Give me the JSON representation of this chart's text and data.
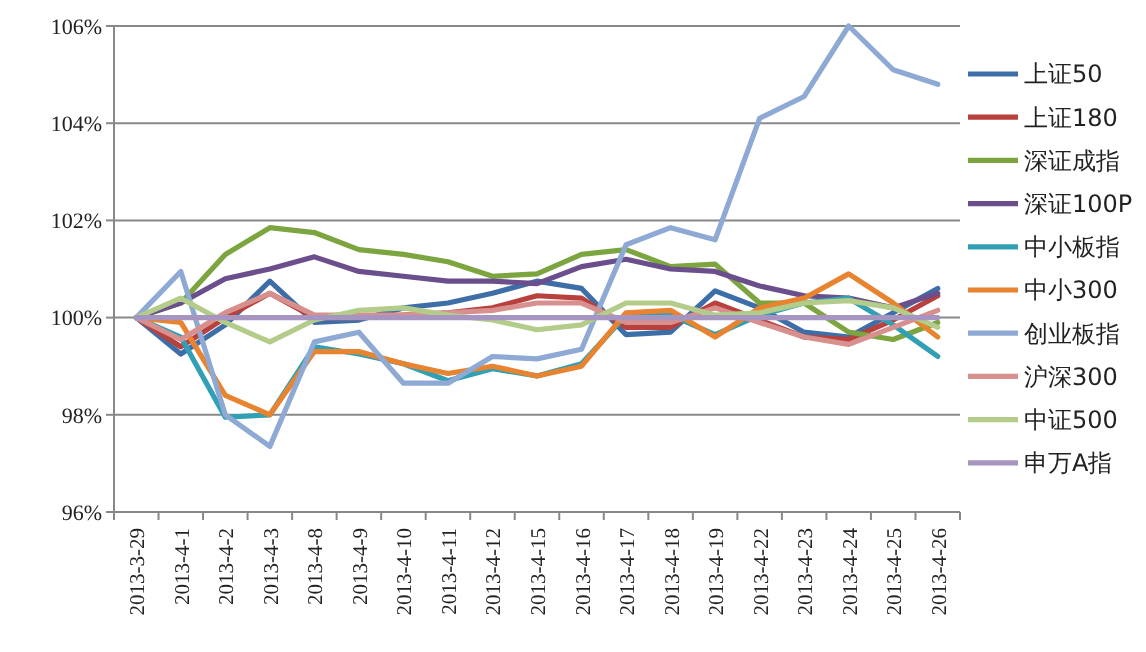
{
  "chart_data": {
    "type": "line",
    "categories": [
      "2013-3-29",
      "2013-4-1",
      "2013-4-2",
      "2013-4-3",
      "2013-4-8",
      "2013-4-9",
      "2013-4-10",
      "2013-4-11",
      "2013-4-12",
      "2013-4-15",
      "2013-4-16",
      "2013-4-17",
      "2013-4-18",
      "2013-4-19",
      "2013-4-22",
      "2013-4-23",
      "2013-4-24",
      "2013-4-25",
      "2013-4-26"
    ],
    "ylim": [
      96,
      106
    ],
    "yticks": [
      {
        "value": 96,
        "label": "96%"
      },
      {
        "value": 98,
        "label": "98%"
      },
      {
        "value": 100,
        "label": "100%"
      },
      {
        "value": 102,
        "label": "102%"
      },
      {
        "value": 104,
        "label": "104%"
      },
      {
        "value": 106,
        "label": "106%"
      }
    ],
    "grid": "y",
    "legend": "right",
    "marker": "none",
    "line_style": "solid",
    "series": [
      {
        "name": "上证50",
        "color": "#3d6ea8",
        "values": [
          100,
          99.25,
          99.85,
          100.75,
          99.9,
          99.95,
          100.2,
          100.3,
          100.5,
          100.75,
          100.6,
          99.65,
          99.7,
          100.55,
          100.2,
          99.7,
          99.6,
          100.1,
          100.6
        ]
      },
      {
        "name": "上证180",
        "color": "#b8403d",
        "values": [
          100,
          99.4,
          100.0,
          100.5,
          100.0,
          100.0,
          100.05,
          100.1,
          100.2,
          100.45,
          100.4,
          99.8,
          99.8,
          100.3,
          99.95,
          99.6,
          99.55,
          99.95,
          100.45
        ]
      },
      {
        "name": "深证成指",
        "color": "#7ca43f",
        "values": [
          100,
          100.3,
          101.3,
          101.85,
          101.75,
          101.4,
          101.3,
          101.15,
          100.85,
          100.9,
          101.3,
          101.4,
          101.05,
          101.1,
          100.3,
          100.3,
          99.7,
          99.55,
          99.9
        ]
      },
      {
        "name": "深证100P",
        "color": "#6a4f8c",
        "values": [
          100,
          100.3,
          100.8,
          101.0,
          101.25,
          100.95,
          100.85,
          100.75,
          100.75,
          100.7,
          101.05,
          101.2,
          101.0,
          100.95,
          100.65,
          100.45,
          100.4,
          100.2,
          100.5
        ]
      },
      {
        "name": "中小板指",
        "color": "#31a0b5",
        "values": [
          100,
          99.6,
          97.95,
          98.0,
          99.4,
          99.25,
          99.05,
          98.7,
          98.95,
          98.8,
          99.05,
          100.05,
          100.05,
          99.65,
          100.05,
          100.3,
          100.4,
          99.85,
          99.2
        ]
      },
      {
        "name": "中小300",
        "color": "#e8832f",
        "values": [
          100,
          99.9,
          98.4,
          98.0,
          99.3,
          99.3,
          99.05,
          98.85,
          99.0,
          98.8,
          99.0,
          100.1,
          100.15,
          99.6,
          100.2,
          100.4,
          100.9,
          100.3,
          99.6
        ]
      },
      {
        "name": "创业板指",
        "color": "#8ea9d4",
        "values": [
          100,
          100.95,
          98.0,
          97.35,
          99.5,
          99.7,
          98.65,
          98.65,
          99.2,
          99.15,
          99.35,
          101.5,
          101.85,
          101.6,
          104.1,
          104.55,
          106,
          105.1,
          104.8
        ]
      },
      {
        "name": "沪深300",
        "color": "#d8908e",
        "values": [
          100,
          99.55,
          100.1,
          100.5,
          100.05,
          100.05,
          100.05,
          100.1,
          100.15,
          100.3,
          100.3,
          99.9,
          99.9,
          100.2,
          99.9,
          99.6,
          99.45,
          99.8,
          100.15
        ]
      },
      {
        "name": "中证500",
        "color": "#b3cc8a",
        "values": [
          100,
          100.4,
          99.9,
          99.5,
          99.95,
          100.15,
          100.2,
          100.05,
          99.95,
          99.75,
          99.85,
          100.3,
          100.3,
          100.05,
          100.1,
          100.3,
          100.35,
          100.2,
          99.8
        ]
      },
      {
        "name": "申万A指",
        "color": "#a695c0",
        "values": [
          100,
          100,
          100,
          100,
          100,
          100,
          100,
          100,
          100,
          100,
          100,
          100,
          100,
          100,
          100,
          100,
          100,
          100,
          100
        ]
      }
    ]
  }
}
